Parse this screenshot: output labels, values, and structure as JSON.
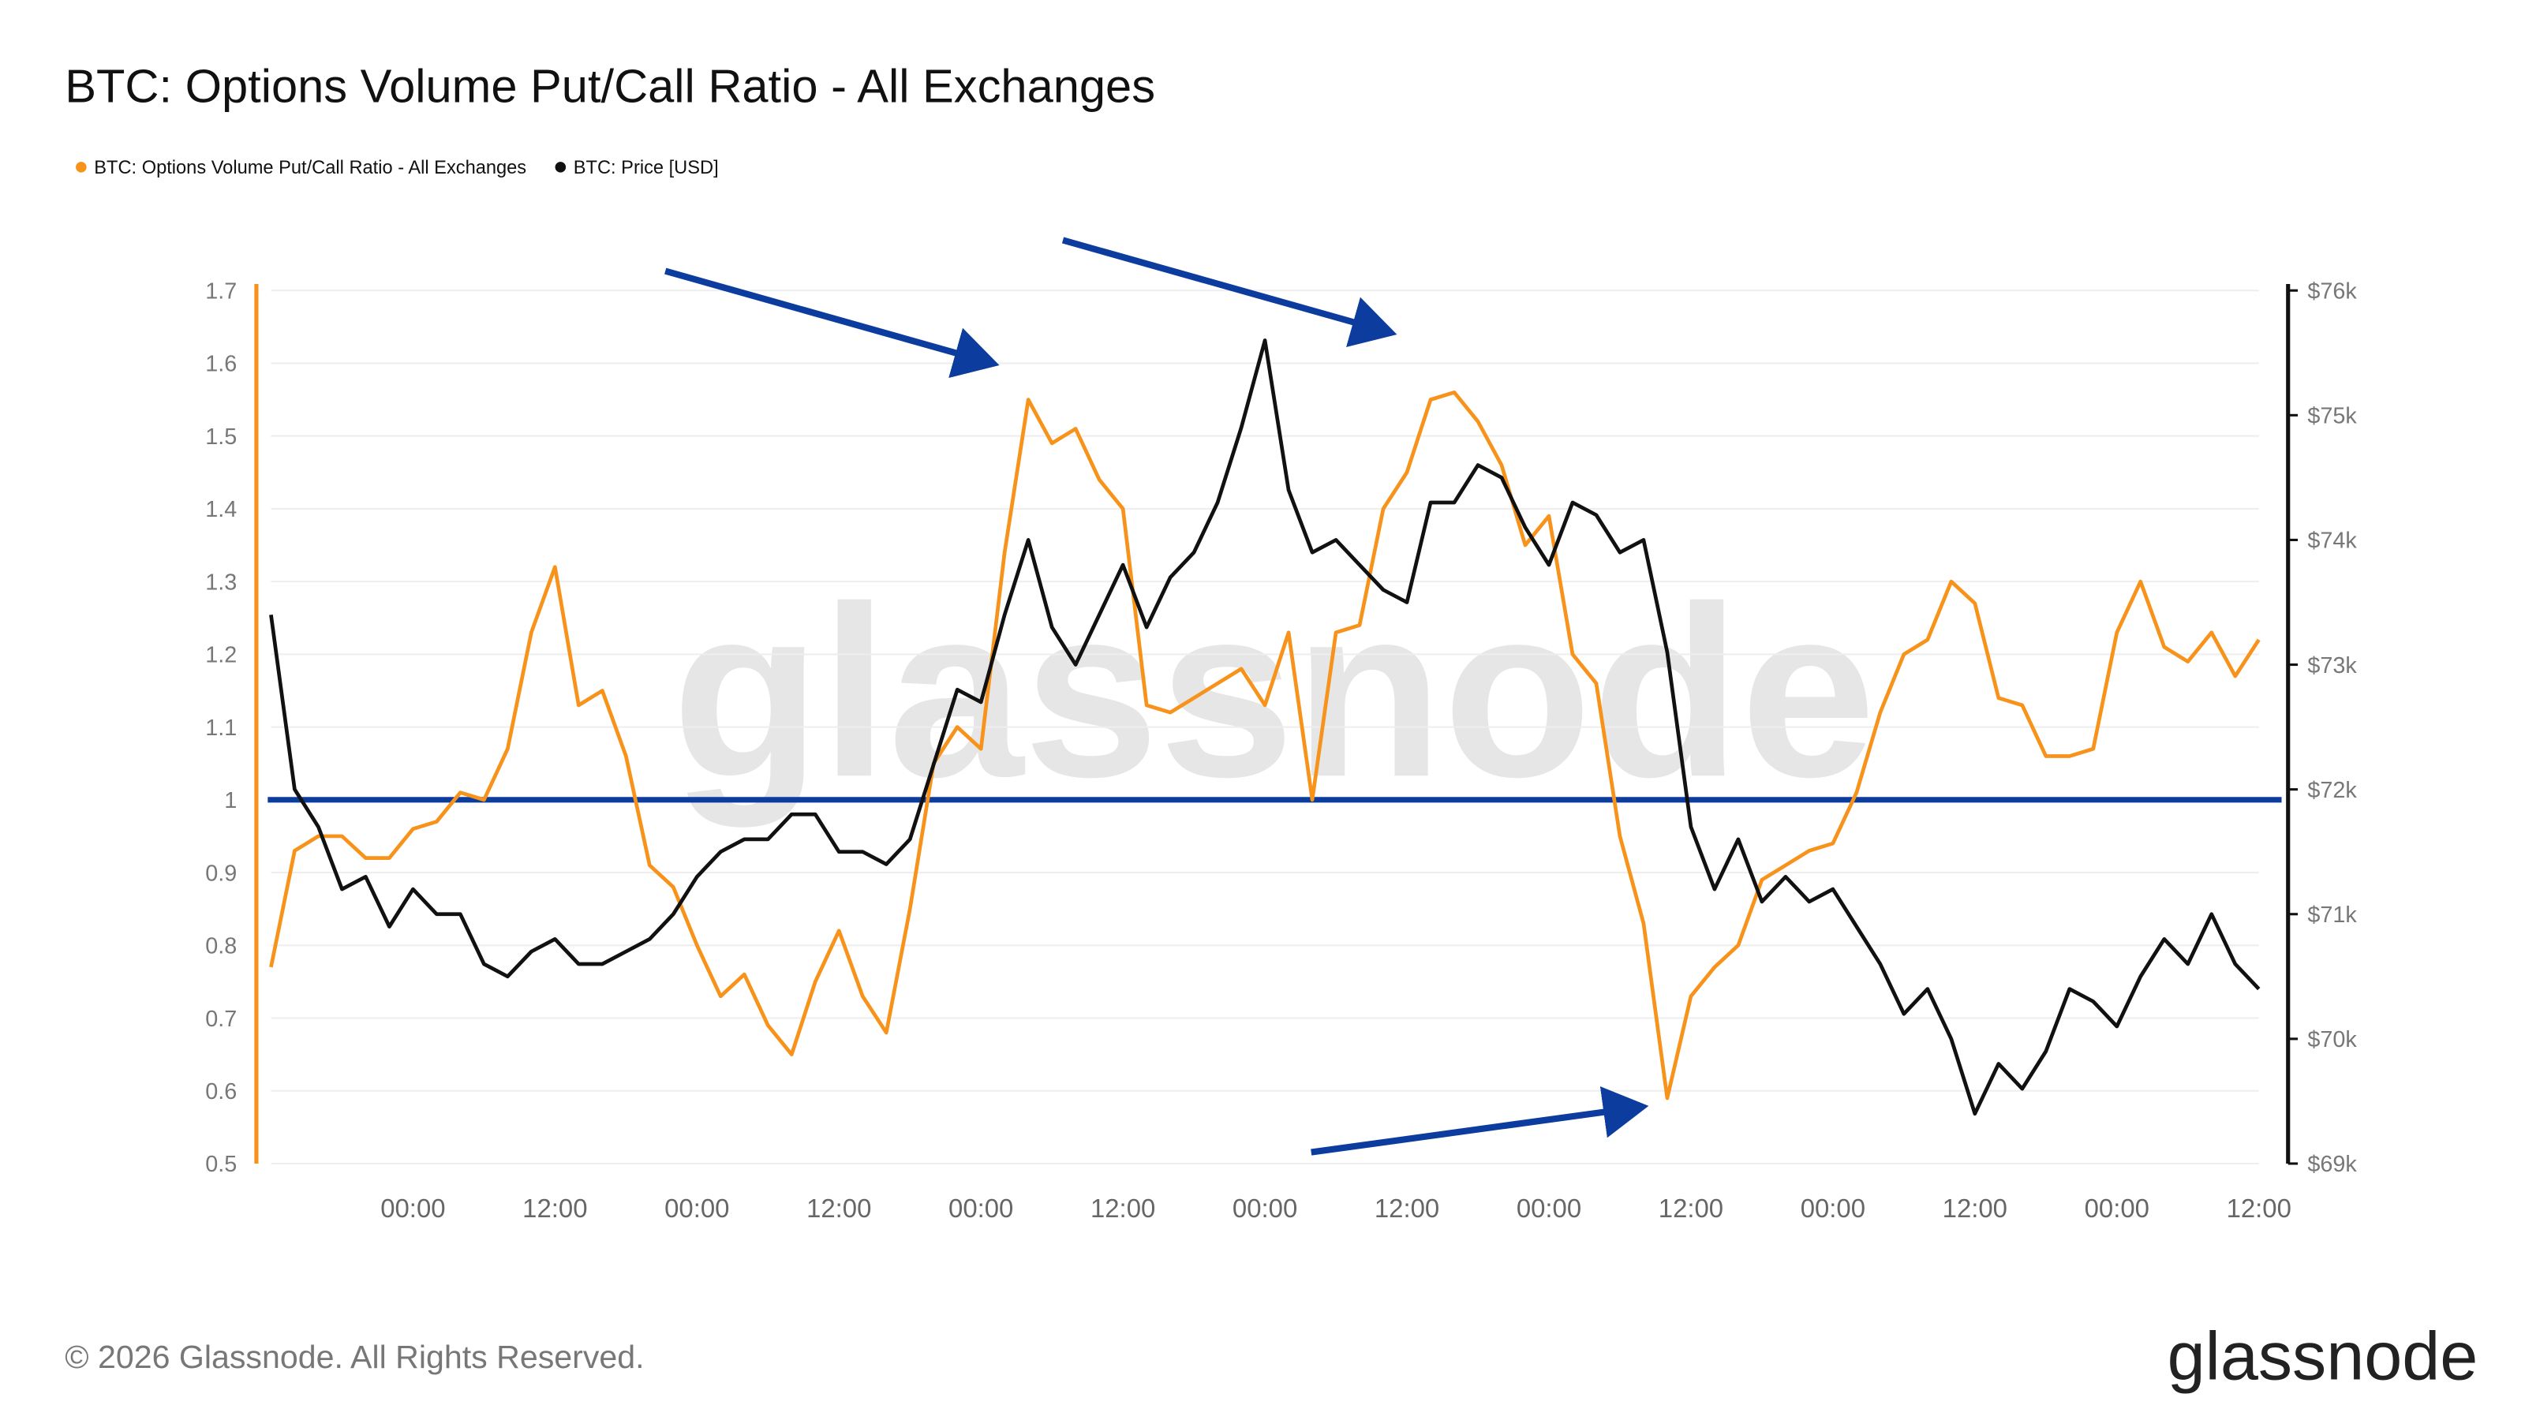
{
  "chart_data": {
    "type": "line",
    "title": "BTC: Options Volume Put/Call Ratio - All Exchanges",
    "watermark": "glassnode",
    "copyright": "© 2026 Glassnode. All Rights Reserved.",
    "logo": "glassnode",
    "categories": [
      null,
      null,
      null,
      null,
      null,
      null,
      "00:00",
      null,
      null,
      null,
      null,
      null,
      "12:00",
      null,
      null,
      null,
      null,
      null,
      "00:00",
      null,
      null,
      null,
      null,
      null,
      "12:00",
      null,
      null,
      null,
      null,
      null,
      "00:00",
      null,
      null,
      null,
      null,
      null,
      "12:00",
      null,
      null,
      null,
      null,
      null,
      "00:00",
      null,
      null,
      null,
      null,
      null,
      "12:00",
      null,
      null,
      null,
      null,
      null,
      "00:00",
      null,
      null,
      null,
      null,
      null,
      "12:00",
      null,
      null,
      null,
      null,
      null,
      "00:00",
      null,
      null,
      null,
      null,
      null,
      "12:00",
      null,
      null,
      null,
      null,
      null,
      "00:00",
      null,
      null,
      null,
      null,
      null,
      "12:00"
    ],
    "series": [
      {
        "name": "BTC: Options Volume Put/Call Ratio - All Exchanges",
        "color": "#f7931a",
        "values": [
          0.77,
          0.93,
          0.95,
          0.95,
          0.92,
          0.92,
          0.96,
          0.97,
          1.01,
          1.0,
          1.07,
          1.23,
          1.32,
          1.13,
          1.15,
          1.06,
          0.91,
          0.88,
          0.8,
          0.73,
          0.76,
          0.69,
          0.65,
          0.75,
          0.82,
          0.73,
          0.68,
          0.85,
          1.05,
          1.1,
          1.07,
          1.34,
          1.55,
          1.49,
          1.51,
          1.44,
          1.4,
          1.13,
          1.12,
          1.14,
          1.16,
          1.18,
          1.13,
          1.23,
          1.0,
          1.23,
          1.24,
          1.4,
          1.45,
          1.55,
          1.56,
          1.52,
          1.46,
          1.35,
          1.39,
          1.2,
          1.16,
          0.95,
          0.83,
          0.59,
          0.73,
          0.77,
          0.8,
          0.89,
          0.91,
          0.93,
          0.94,
          1.01,
          1.12,
          1.2,
          1.22,
          1.3,
          1.27,
          1.14,
          1.13,
          1.06,
          1.06,
          1.07,
          1.23,
          1.3,
          1.21,
          1.19,
          1.23,
          1.17,
          1.22
        ]
      },
      {
        "name": "BTC: Price [USD]",
        "color": "#111111",
        "axis": "y2",
        "values": [
          73400,
          72000,
          71700,
          71200,
          71300,
          70900,
          71200,
          71000,
          71000,
          70600,
          70500,
          70700,
          70800,
          70600,
          70600,
          70700,
          70800,
          71000,
          71300,
          71500,
          71600,
          71600,
          71800,
          71800,
          71500,
          71500,
          71400,
          71600,
          72200,
          72800,
          72700,
          73400,
          74000,
          73300,
          73000,
          73400,
          73800,
          73300,
          73700,
          73900,
          74300,
          74900,
          75600,
          74400,
          73900,
          74000,
          73800,
          73600,
          73500,
          74300,
          74300,
          74600,
          74500,
          74100,
          73800,
          74300,
          74200,
          73900,
          74000,
          73100,
          71700,
          71200,
          71600,
          71100,
          71300,
          71100,
          71200,
          70900,
          70600,
          70200,
          70400,
          70000,
          69400,
          69800,
          69600,
          69900,
          70400,
          70300,
          70100,
          70500,
          70800,
          70600,
          71000,
          70600,
          70400
        ]
      }
    ],
    "reference_line": 1,
    "ylim": [
      0.5,
      1.7
    ],
    "yticks": [
      0.5,
      0.6,
      0.7,
      0.8,
      0.9,
      1,
      1.1,
      1.2,
      1.3,
      1.4,
      1.5,
      1.6,
      1.7
    ],
    "y2lim": [
      69000,
      76000
    ],
    "y2ticks": [
      {
        "value": 69000,
        "label": "$69k"
      },
      {
        "value": 70000,
        "label": "$70k"
      },
      {
        "value": 71000,
        "label": "$71k"
      },
      {
        "value": 72000,
        "label": "$72k"
      },
      {
        "value": 73000,
        "label": "$73k"
      },
      {
        "value": 74000,
        "label": "$74k"
      },
      {
        "value": 75000,
        "label": "$75k"
      },
      {
        "value": 76000,
        "label": "$76k"
      }
    ],
    "grid": true
  }
}
